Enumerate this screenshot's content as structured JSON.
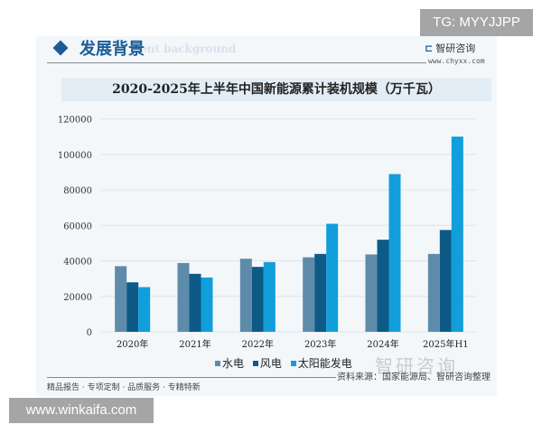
{
  "overlay": {
    "tg": "TG: MYYJJPP",
    "site": "www.winkaifa.com"
  },
  "header": {
    "section": "发展背景",
    "section_en": "ent background",
    "brand": "智研咨询",
    "brand_url": "www.chyxx.com",
    "watermark": "智研咨询"
  },
  "footer": {
    "source": "资料来源：国家能源局、智研咨询整理",
    "slogan": "精品报告 · 专项定制 · 品质服务 · 专精特新"
  },
  "chart_data": {
    "type": "bar",
    "title": "2020-2025年上半年中国新能源累计装机规模（万千瓦）",
    "categories": [
      "2020年",
      "2021年",
      "2022年",
      "2023年",
      "2024年",
      "2025年H1"
    ],
    "series": [
      {
        "name": "水电",
        "color": "#5f8bab",
        "values": [
          37000,
          38800,
          41200,
          42000,
          43600,
          43900
        ]
      },
      {
        "name": "风电",
        "color": "#0e5a86",
        "values": [
          27900,
          32700,
          36600,
          43900,
          51900,
          57400
        ]
      },
      {
        "name": "太阳能发电",
        "color": "#119edb",
        "values": [
          25200,
          30600,
          39300,
          60900,
          88900,
          110000
        ]
      }
    ],
    "yticks": [
      "0",
      "20000",
      "40000",
      "60000",
      "80000",
      "100000",
      "120000"
    ],
    "ylim": [
      0,
      120000
    ],
    "grid": true,
    "legend": "bottom"
  }
}
